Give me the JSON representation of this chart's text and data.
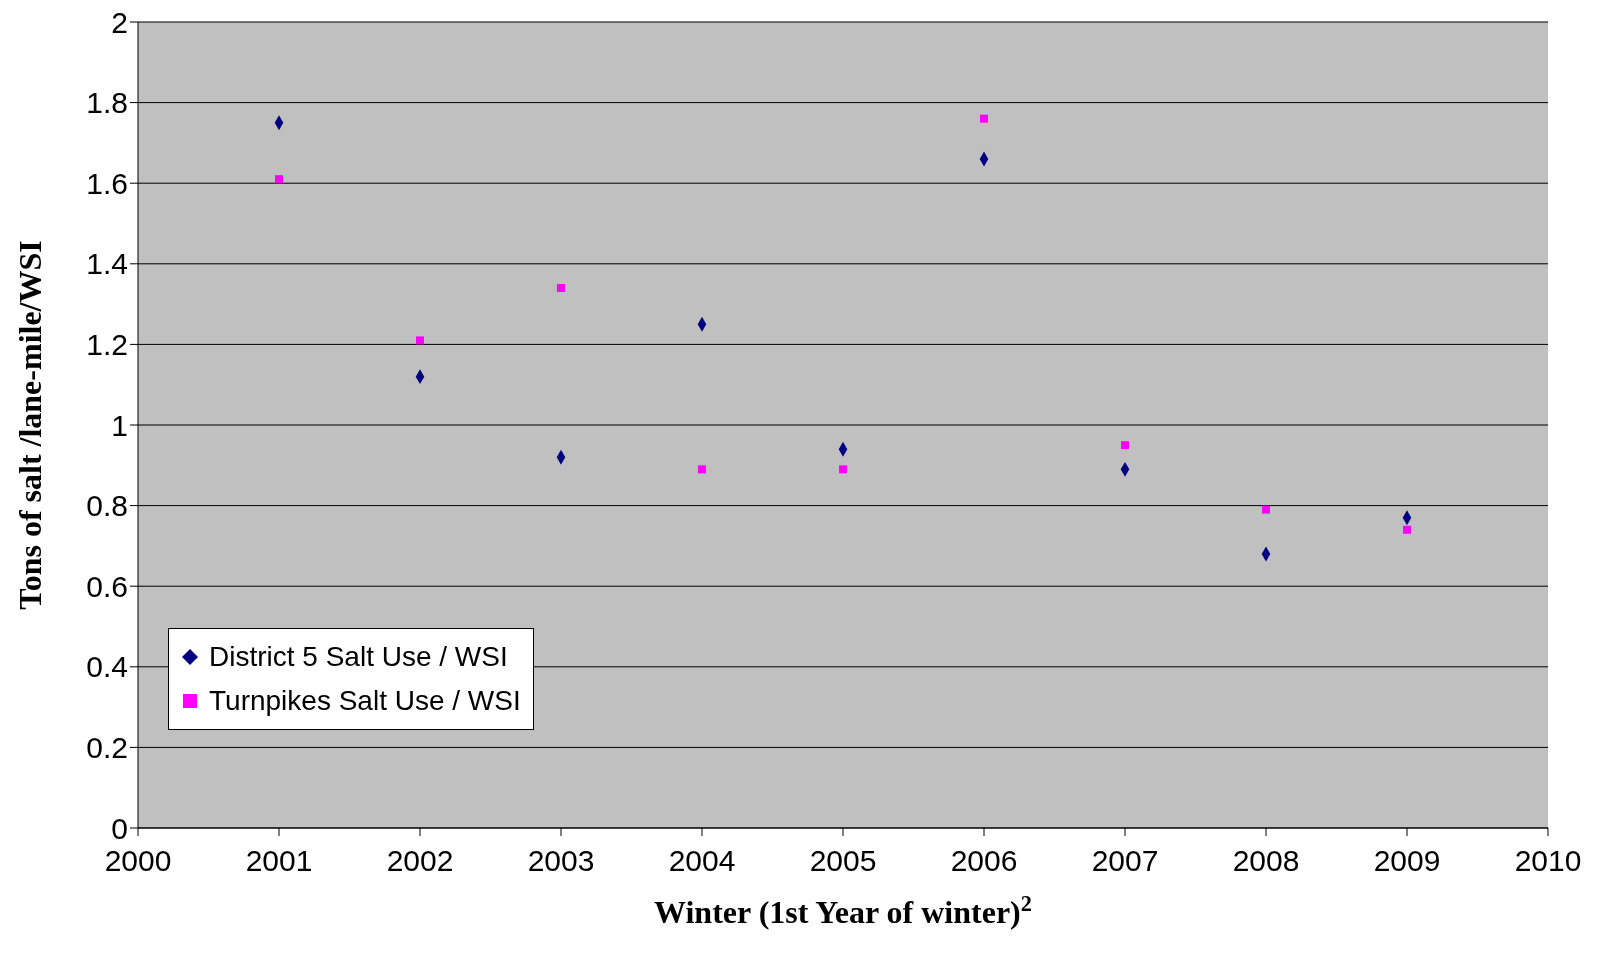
{
  "chart_data": {
    "type": "scatter",
    "xlabel": "Winter (1st Year of winter)$^{2}$",
    "ylabel": "Tons of salt /lane-mile/WSI",
    "x": [
      2001,
      2002,
      2003,
      2004,
      2005,
      2006,
      2007,
      2008,
      2009
    ],
    "series": [
      {
        "name": "District 5 Salt Use / WSI",
        "color": "#000080",
        "marker": "diamond",
        "values": [
          1.75,
          1.12,
          0.92,
          1.25,
          0.94,
          1.66,
          0.89,
          0.68,
          0.77
        ]
      },
      {
        "name": "Turnpikes Salt Use / WSI",
        "color": "#ff00ff",
        "marker": "square",
        "values": [
          1.61,
          1.21,
          1.34,
          0.89,
          0.89,
          1.76,
          0.95,
          0.79,
          0.74
        ]
      }
    ],
    "xlim": [
      2000,
      2010
    ],
    "xticks": [
      2000,
      2001,
      2002,
      2003,
      2004,
      2005,
      2006,
      2007,
      2008,
      2009,
      2010
    ],
    "ylim": [
      0,
      2
    ],
    "yticks": [
      0,
      0.2,
      0.4,
      0.6,
      0.8,
      1,
      1.2,
      1.4,
      1.6,
      1.8,
      2
    ],
    "grid": "y",
    "legend": "bottom left"
  }
}
